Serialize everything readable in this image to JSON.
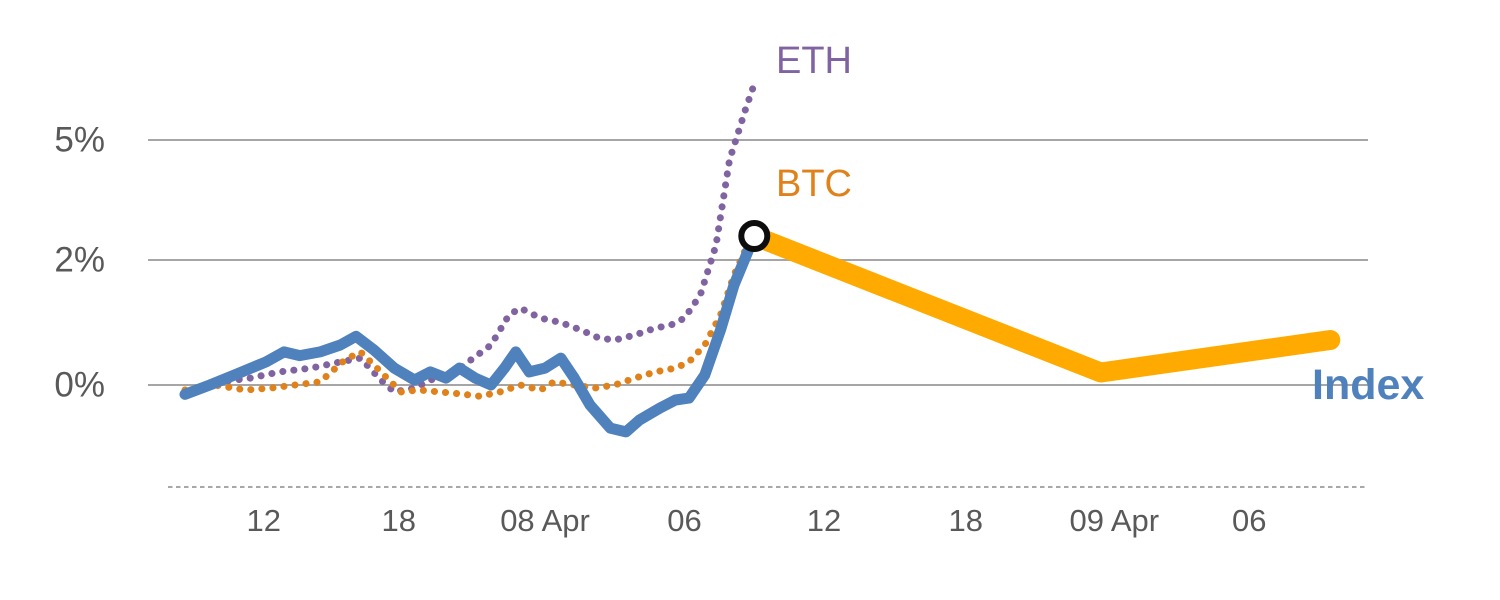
{
  "chart_data": {
    "type": "line",
    "x_axis": {
      "unit": "time-of-day",
      "domain": [
        0,
        51.5
      ],
      "ticks": [
        {
          "x": 3.5,
          "label": "12"
        },
        {
          "x": 9.5,
          "label": "18"
        },
        {
          "x": 16.0,
          "label": "08 Apr"
        },
        {
          "x": 22.2,
          "label": "06"
        },
        {
          "x": 28.4,
          "label": "12"
        },
        {
          "x": 34.7,
          "label": "18"
        },
        {
          "x": 41.3,
          "label": "09 Apr"
        },
        {
          "x": 47.3,
          "label": "06"
        }
      ]
    },
    "y_axis": {
      "unit": "%",
      "range": [
        -1.5,
        6.6
      ],
      "gridlines": [
        {
          "value": 5,
          "label": "5%"
        },
        {
          "value": 2,
          "label": "2%"
        },
        {
          "value": 0,
          "label": "0%"
        }
      ]
    },
    "series": [
      {
        "name": "ETH",
        "style": "dotted",
        "color": "#8064a2",
        "points": [
          [
            0,
            -0.1
          ],
          [
            1.6,
            0.05
          ],
          [
            2.9,
            0.11
          ],
          [
            4.2,
            0.21
          ],
          [
            5.6,
            0.27
          ],
          [
            6.9,
            0.37
          ],
          [
            7.8,
            0.43
          ],
          [
            8.7,
            0.08
          ],
          [
            9.3,
            -0.11
          ],
          [
            10.2,
            -0.05
          ],
          [
            11.1,
            0.11
          ],
          [
            12.0,
            0.21
          ],
          [
            12.7,
            0.4
          ],
          [
            13.6,
            0.64
          ],
          [
            14.4,
            1.12
          ],
          [
            14.9,
            1.23
          ],
          [
            15.8,
            1.07
          ],
          [
            16.7,
            1.0
          ],
          [
            17.6,
            0.88
          ],
          [
            18.4,
            0.75
          ],
          [
            19.1,
            0.72
          ],
          [
            20.0,
            0.8
          ],
          [
            20.9,
            0.91
          ],
          [
            21.6,
            0.96
          ],
          [
            22.2,
            1.07
          ],
          [
            22.9,
            1.44
          ],
          [
            23.6,
            2.37
          ],
          [
            24.2,
            4.5
          ],
          [
            24.9,
            5.75
          ],
          [
            25.3,
            6.4
          ]
        ]
      },
      {
        "name": "BTC",
        "style": "dotted",
        "color": "#e0821c",
        "points": [
          [
            0,
            -0.08
          ],
          [
            1.3,
            0.0
          ],
          [
            2.7,
            -0.08
          ],
          [
            3.8,
            -0.05
          ],
          [
            4.9,
            0.0
          ],
          [
            6.0,
            0.05
          ],
          [
            7.1,
            0.4
          ],
          [
            7.8,
            0.53
          ],
          [
            8.7,
            0.21
          ],
          [
            9.6,
            -0.11
          ],
          [
            10.4,
            -0.08
          ],
          [
            11.3,
            -0.11
          ],
          [
            12.2,
            -0.14
          ],
          [
            13.1,
            -0.18
          ],
          [
            14.0,
            -0.11
          ],
          [
            14.9,
            0.0
          ],
          [
            15.8,
            -0.08
          ],
          [
            16.4,
            0.05
          ],
          [
            17.3,
            0.0
          ],
          [
            18.2,
            -0.05
          ],
          [
            19.1,
            0.0
          ],
          [
            20.0,
            0.11
          ],
          [
            20.9,
            0.21
          ],
          [
            21.8,
            0.27
          ],
          [
            22.4,
            0.37
          ],
          [
            23.1,
            0.64
          ],
          [
            23.8,
            1.12
          ],
          [
            24.4,
            1.76
          ],
          [
            25.1,
            2.5
          ]
        ]
      },
      {
        "name": "Index",
        "style": "solid",
        "color": "#4f81bd",
        "points": [
          [
            0,
            -0.15
          ],
          [
            1.1,
            0.0
          ],
          [
            2.2,
            0.16
          ],
          [
            3.6,
            0.37
          ],
          [
            4.4,
            0.53
          ],
          [
            5.1,
            0.47
          ],
          [
            6.0,
            0.53
          ],
          [
            6.9,
            0.64
          ],
          [
            7.6,
            0.78
          ],
          [
            8.4,
            0.56
          ],
          [
            9.3,
            0.27
          ],
          [
            10.2,
            0.08
          ],
          [
            10.9,
            0.21
          ],
          [
            11.6,
            0.11
          ],
          [
            12.2,
            0.27
          ],
          [
            12.9,
            0.11
          ],
          [
            13.6,
            0.0
          ],
          [
            14.2,
            0.27
          ],
          [
            14.7,
            0.53
          ],
          [
            15.3,
            0.21
          ],
          [
            16.0,
            0.27
          ],
          [
            16.7,
            0.43
          ],
          [
            17.3,
            0.11
          ],
          [
            18.0,
            -0.32
          ],
          [
            18.9,
            -0.69
          ],
          [
            19.6,
            -0.75
          ],
          [
            20.2,
            -0.56
          ],
          [
            21.1,
            -0.37
          ],
          [
            21.8,
            -0.24
          ],
          [
            22.4,
            -0.21
          ],
          [
            23.1,
            0.16
          ],
          [
            23.8,
            0.88
          ],
          [
            24.4,
            1.6
          ],
          [
            25.3,
            2.6
          ]
        ]
      },
      {
        "name": "Index forecast",
        "style": "thick",
        "color": "#ffaa00",
        "points": [
          [
            25.3,
            2.6
          ],
          [
            40.7,
            0.2
          ],
          [
            50.9,
            0.72
          ]
        ]
      }
    ],
    "marker": {
      "x": 25.3,
      "value": 2.6,
      "fill": "#ffffff",
      "stroke": "#0d0d0d"
    },
    "legend_position": "inline-labels",
    "grid": true
  },
  "labels": {
    "eth": "ETH",
    "btc": "BTC",
    "index": "Index"
  },
  "colors": {
    "gridline": "#a6a6a6",
    "axis_line": "#8c8c8c",
    "axis_text": "#595959"
  }
}
